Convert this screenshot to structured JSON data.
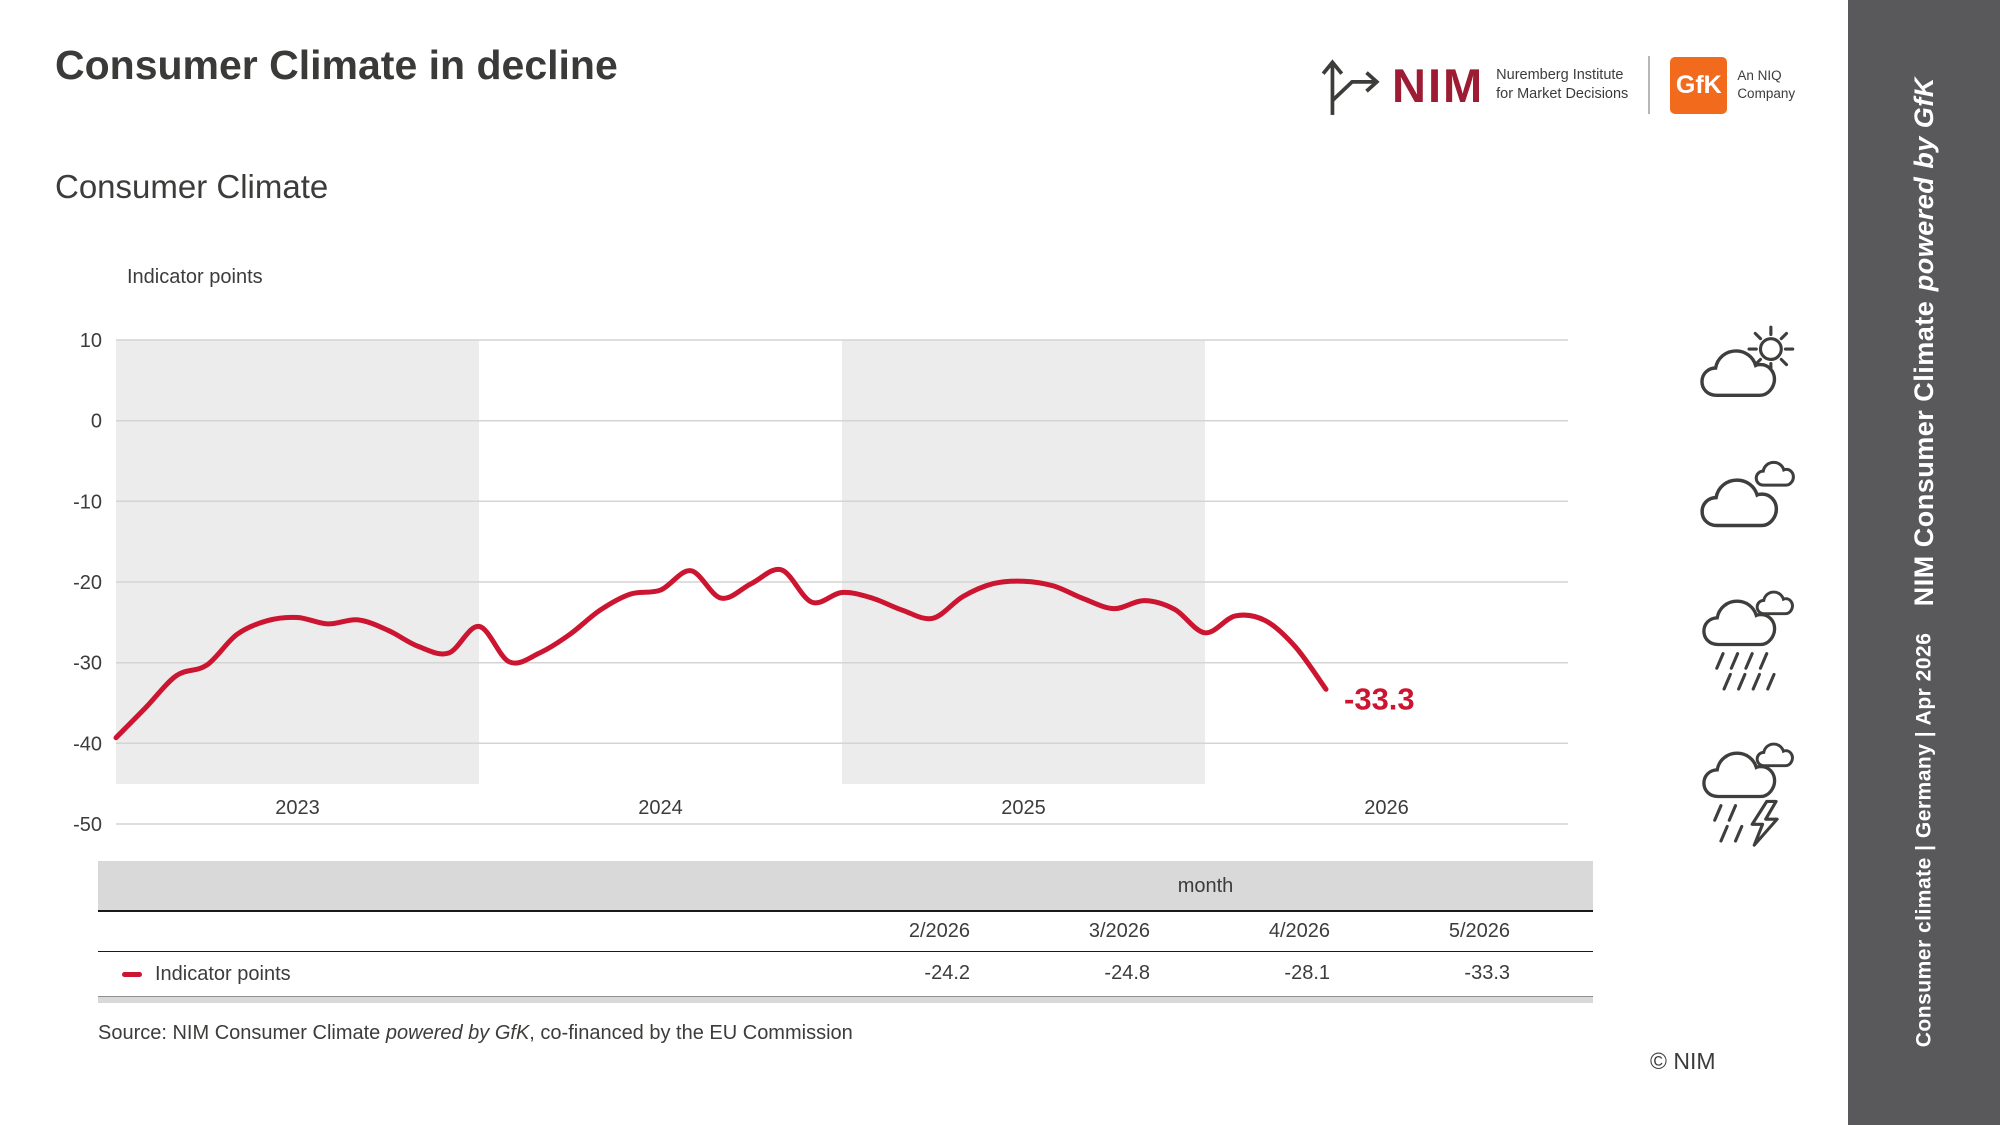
{
  "page": {
    "title": "Consumer Climate in decline",
    "subtitle": "Consumer Climate"
  },
  "header_logos": {
    "nim_wordmark": "NIM",
    "nim_line1": "Nuremberg Institute",
    "nim_line2": "for Market Decisions",
    "gfk_wordmark": "GfK",
    "niq_line1": "An NIQ",
    "niq_line2": "Company"
  },
  "chart_data": {
    "type": "line",
    "title": "Consumer Climate",
    "ylabel": "Indicator points",
    "ylim": [
      -50,
      10
    ],
    "yticks": [
      10,
      0,
      -10,
      -20,
      -30,
      -40,
      -50
    ],
    "year_labels": [
      "2023",
      "2024",
      "2025",
      "2026"
    ],
    "shaded_years": [
      "2023",
      "2025"
    ],
    "months_per_year": 12,
    "x_start": "1/2023",
    "x_end": "5/2026",
    "grid": true,
    "series": [
      {
        "name": "Indicator points",
        "color": "#cc1530",
        "values": [
          -39.3,
          -35.5,
          -31.6,
          -30.3,
          -26.5,
          -24.8,
          -24.4,
          -25.2,
          -24.7,
          -26.0,
          -28.0,
          -28.8,
          -25.5,
          -29.9,
          -28.8,
          -26.5,
          -23.5,
          -21.5,
          -21.0,
          -18.6,
          -22.0,
          -20.2,
          -18.5,
          -22.5,
          -21.3,
          -22.0,
          -23.5,
          -24.5,
          -21.8,
          -20.2,
          -19.9,
          -20.5,
          -22.1,
          -23.3,
          -22.3,
          -23.4,
          -26.3,
          -24.2,
          -24.8,
          -28.1,
          -33.3
        ]
      }
    ],
    "last_value_label": "-33.3"
  },
  "table": {
    "group_header": "month",
    "row_label": "Indicator points",
    "columns": [
      "2/2026",
      "3/2026",
      "4/2026",
      "5/2026"
    ],
    "values": [
      "-24.2",
      "-24.8",
      "-28.1",
      "-33.3"
    ]
  },
  "weather_icons": [
    "partly-sunny-icon",
    "cloudy-icon",
    "rain-icon",
    "thunderstorm-icon"
  ],
  "footer": {
    "source_prefix": "Source: NIM Consumer Climate ",
    "source_italic": "powered by GfK",
    "source_suffix": ", co-financed by the EU Commission",
    "copyright": "© NIM"
  },
  "sidebar": {
    "segment_small": "Consumer climate | Germany  |  Apr 2026",
    "segment_bold": "NIM Consumer Climate",
    "segment_italic": "powered by GfK"
  },
  "colors": {
    "accent_red": "#cc1530",
    "nim_red": "#9d1b33",
    "gfk_orange": "#f26b1d",
    "sidebar_gray": "#59595b",
    "band_gray": "#ececec",
    "grid_gray": "#d4d4d4"
  }
}
